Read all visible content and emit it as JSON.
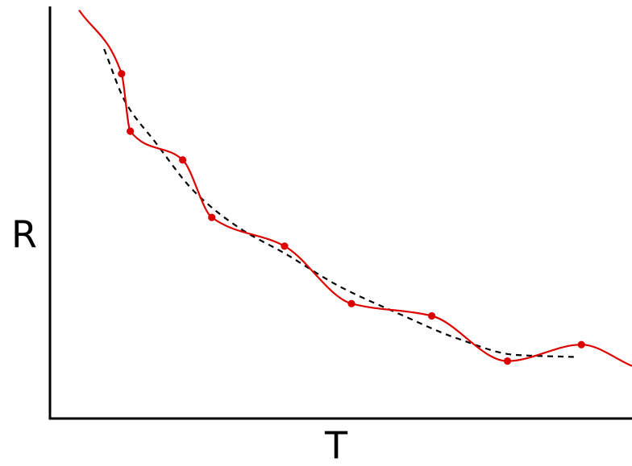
{
  "chart_data": {
    "type": "line",
    "xlabel": "T",
    "ylabel": "R",
    "xlim": [
      0,
      10
    ],
    "ylim": [
      0,
      10
    ],
    "grid": false,
    "legend": "none",
    "ticks": false,
    "colors": {
      "points": "#dd0000",
      "interpolation": "#dd0000",
      "fit": "#000000",
      "axes": "#000000"
    },
    "series": [
      {
        "style": "points",
        "x": [
          1.23,
          1.38,
          2.28,
          2.78,
          4.03,
          5.18,
          6.56,
          7.86,
          9.13
        ],
        "y": [
          8.4,
          7.0,
          6.3,
          4.9,
          4.2,
          2.8,
          2.5,
          1.4,
          1.8
        ]
      },
      {
        "style": "interpolation-curve",
        "x": [
          0.5,
          1.23,
          1.38,
          2.28,
          2.78,
          4.03,
          5.18,
          6.56,
          7.86,
          9.13,
          10.0
        ],
        "y": [
          9.95,
          8.4,
          7.0,
          6.3,
          4.9,
          4.2,
          2.8,
          2.5,
          1.4,
          1.8,
          1.28
        ]
      },
      {
        "style": "dashed-fit",
        "x": [
          0.93,
          1.3,
          1.8,
          2.5,
          3.3,
          4.0,
          5.0,
          6.0,
          7.0,
          8.0,
          9.0
        ],
        "y": [
          9.0,
          7.7,
          6.75,
          5.5,
          4.6,
          4.05,
          3.2,
          2.55,
          1.95,
          1.55,
          1.5
        ]
      }
    ]
  }
}
